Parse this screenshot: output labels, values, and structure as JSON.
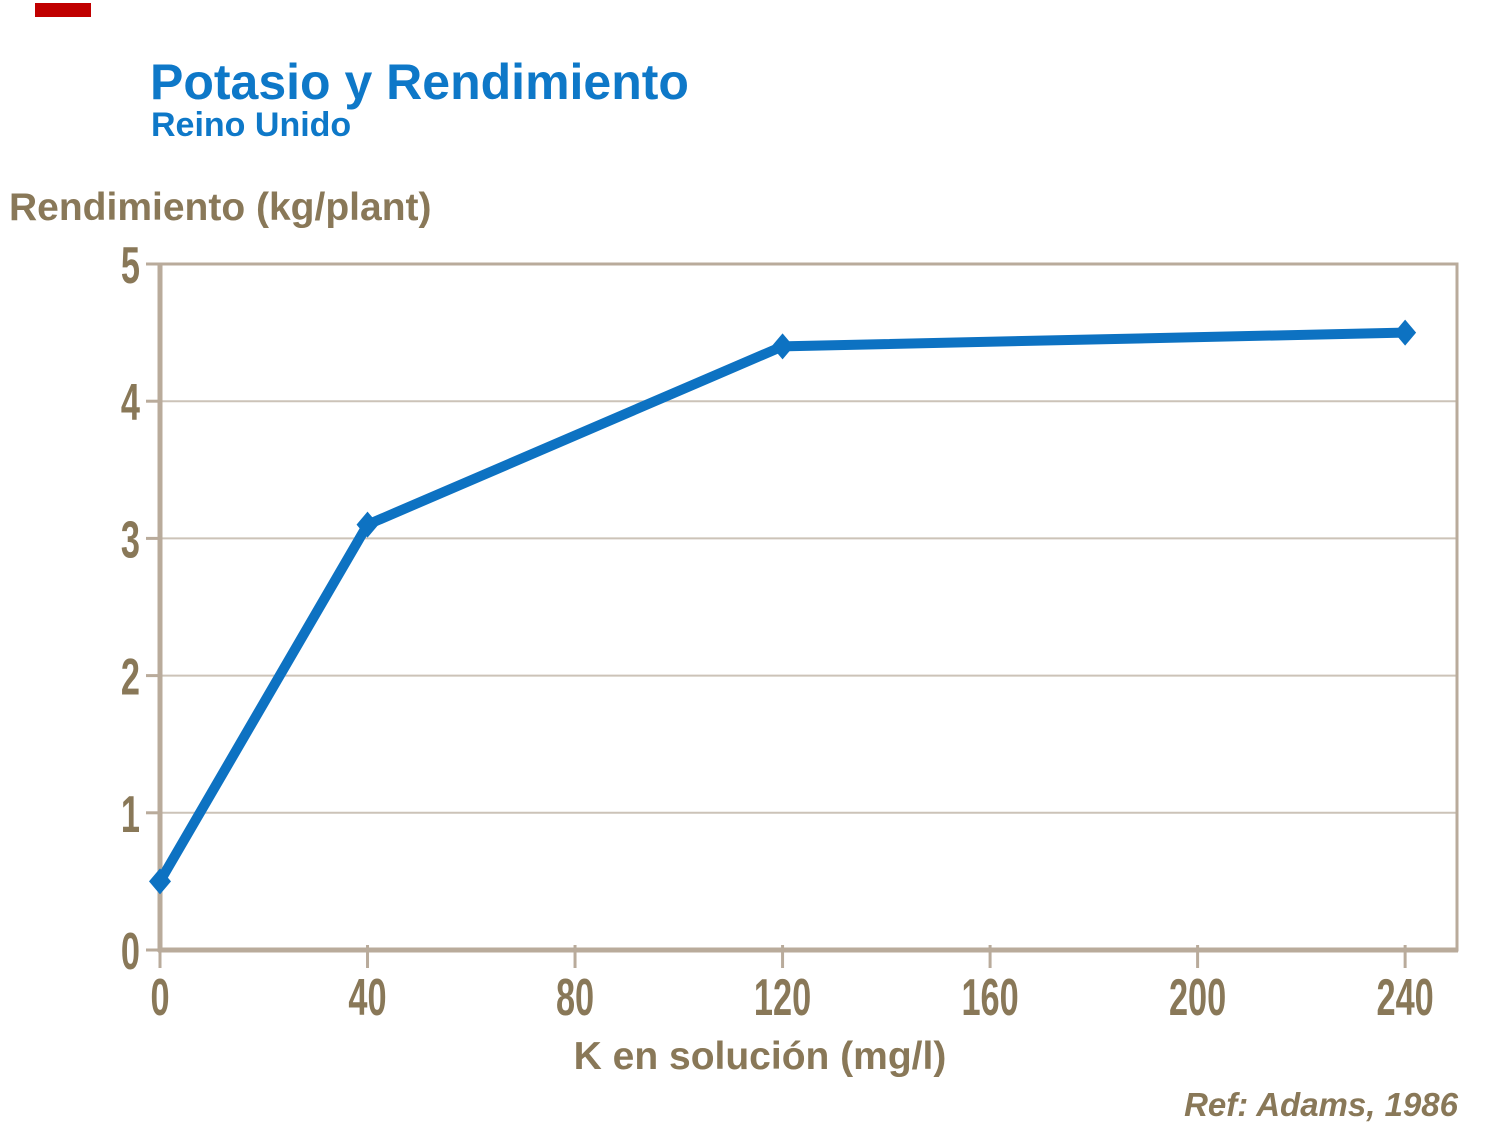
{
  "slide": {
    "title": "Potasio y Rendimiento",
    "subtitle": "Reino Unido",
    "reference": "Ref: Adams, 1986",
    "accent_bar_color": "#C00000",
    "title_color": "#0E78C8",
    "text_color": "#897858",
    "background_color": "#FFFFFF"
  },
  "chart_data": {
    "type": "line",
    "title": "Potasio y Rendimiento",
    "subtitle": "Reino Unido",
    "xlabel": "K en solución (mg/l)",
    "ylabel": "Rendimiento (kg/plant)",
    "x": [
      0,
      40,
      120,
      240
    ],
    "y": [
      0.5,
      3.1,
      4.4,
      4.5
    ],
    "xlim": [
      0,
      250
    ],
    "ylim": [
      0,
      5
    ],
    "x_ticks": [
      0,
      40,
      80,
      120,
      160,
      200,
      240
    ],
    "y_ticks": [
      0,
      1,
      2,
      3,
      4,
      5
    ],
    "grid": "horizontal-only",
    "legend": "none",
    "marker": "diamond",
    "line_color": "#0D72C2",
    "axis_color": "#B9AB9B",
    "grid_color": "#CCC3B8",
    "tick_text_color": "#897858",
    "annotation": "Ref: Adams, 1986"
  }
}
